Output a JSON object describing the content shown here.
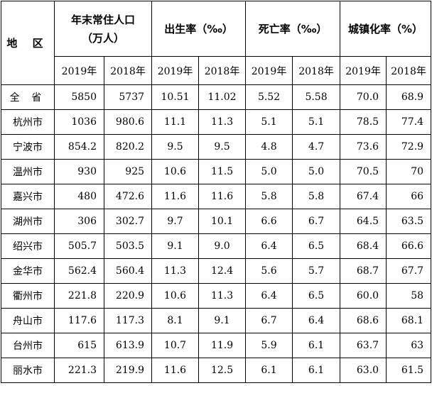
{
  "header": {
    "region": "地 区",
    "population_line1": "年末常住人口",
    "population_line2": "（万人）",
    "birth_rate": "出生率（‰）",
    "death_rate": "死亡率（‰）",
    "urbanization": "城镇化率（%）",
    "years": [
      "2019年",
      "2018年",
      "2019年",
      "2018年",
      "2019年",
      "2018年",
      "2019年",
      "2018年"
    ]
  },
  "rows": [
    {
      "region": "全 省",
      "values": [
        "5850",
        "5737",
        "10.51",
        "11.02",
        "5.52",
        "5.58",
        "70.0",
        "68.9"
      ]
    },
    {
      "region": "杭州市",
      "values": [
        "1036",
        "980.6",
        "11.1",
        "11.3",
        "5.1",
        "5.1",
        "78.5",
        "77.4"
      ]
    },
    {
      "region": "宁波市",
      "values": [
        "854.2",
        "820.2",
        "9.5",
        "9.5",
        "4.8",
        "4.7",
        "73.6",
        "72.9"
      ]
    },
    {
      "region": "温州市",
      "values": [
        "930",
        "925",
        "10.6",
        "11.5",
        "5.0",
        "5.0",
        "70.5",
        "70"
      ]
    },
    {
      "region": "嘉兴市",
      "values": [
        "480",
        "472.6",
        "11.6",
        "11.6",
        "5.8",
        "5.8",
        "67.4",
        "66"
      ]
    },
    {
      "region": "湖州市",
      "values": [
        "306",
        "302.7",
        "9.7",
        "10.1",
        "6.6",
        "6.7",
        "64.5",
        "63.5"
      ]
    },
    {
      "region": "绍兴市",
      "values": [
        "505.7",
        "503.5",
        "9.1",
        "9.0",
        "6.4",
        "6.5",
        "68.4",
        "66.6"
      ]
    },
    {
      "region": "金华市",
      "values": [
        "562.4",
        "560.4",
        "11.3",
        "12.4",
        "5.6",
        "5.7",
        "68.7",
        "67.7"
      ]
    },
    {
      "region": "衢州市",
      "values": [
        "221.8",
        "220.9",
        "10.6",
        "11.3",
        "6.4",
        "6.5",
        "60.0",
        "58"
      ]
    },
    {
      "region": "舟山市",
      "values": [
        "117.6",
        "117.3",
        "8.1",
        "9.1",
        "6.7",
        "6.4",
        "68.6",
        "68.1"
      ]
    },
    {
      "region": "台州市",
      "values": [
        "615",
        "613.9",
        "10.7",
        "11.9",
        "5.9",
        "6.1",
        "63.7",
        "63"
      ]
    },
    {
      "region": "丽水市",
      "values": [
        "221.3",
        "219.9",
        "11.6",
        "12.5",
        "6.1",
        "6.1",
        "63.0",
        "61.5"
      ]
    }
  ]
}
